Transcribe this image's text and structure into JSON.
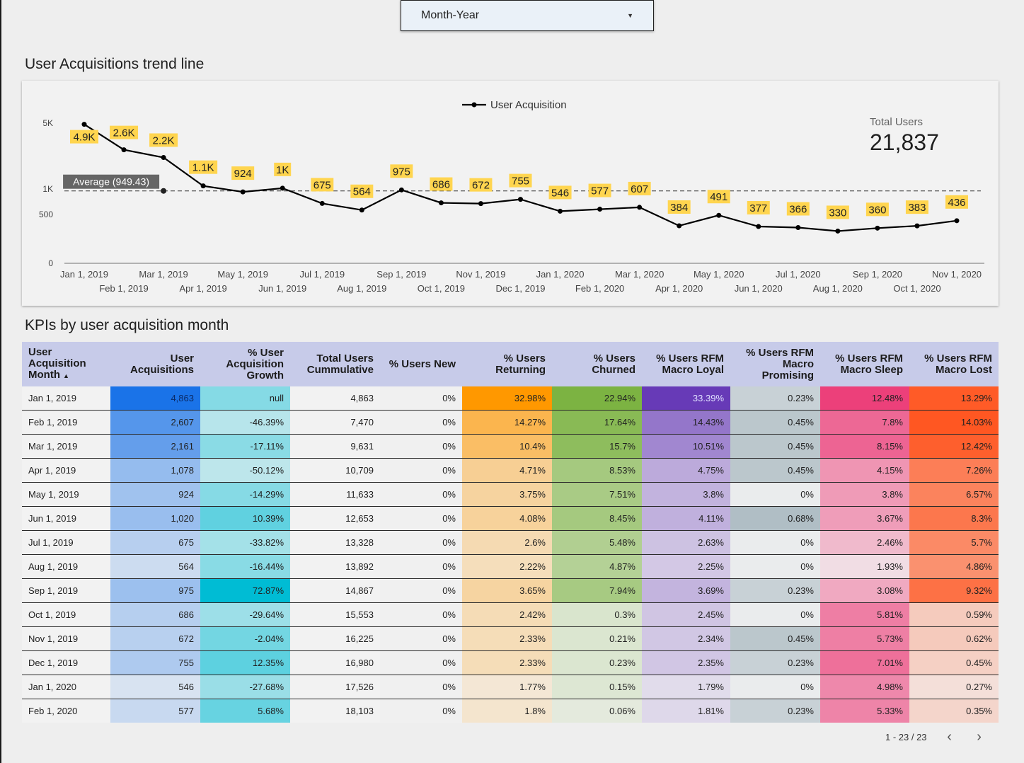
{
  "filter": {
    "label": "Month-Year"
  },
  "trend": {
    "title": "User Acquisitions trend line",
    "legend": "User Acquisition",
    "average_label": "Average (949.43)",
    "scorecard": {
      "label": "Total Users",
      "value": "21,837"
    }
  },
  "chart_data": {
    "type": "line",
    "title": "User Acquisitions trend line",
    "x": [
      "Jan 1, 2019",
      "Feb 1, 2019",
      "Mar 1, 2019",
      "Apr 1, 2019",
      "May 1, 2019",
      "Jun 1, 2019",
      "Jul 1, 2019",
      "Aug 1, 2019",
      "Sep 1, 2019",
      "Oct 1, 2019",
      "Nov 1, 2019",
      "Dec 1, 2019",
      "Jan 1, 2020",
      "Feb 1, 2020",
      "Mar 1, 2020",
      "Apr 1, 2020",
      "May 1, 2020",
      "Jun 1, 2020",
      "Jul 1, 2020",
      "Aug 1, 2020",
      "Sep 1, 2020",
      "Oct 1, 2020",
      "Nov 1, 2020"
    ],
    "series": [
      {
        "name": "User Acquisition",
        "values": [
          4863,
          2607,
          2161,
          1078,
          924,
          1020,
          675,
          564,
          975,
          686,
          672,
          755,
          546,
          577,
          607,
          384,
          491,
          377,
          366,
          330,
          360,
          383,
          436
        ],
        "labels": [
          "4.9K",
          "2.6K",
          "2.2K",
          "1.1K",
          "924",
          "1K",
          "675",
          "564",
          "975",
          "686",
          "672",
          "755",
          "546",
          "577",
          "607",
          "384",
          "491",
          "377",
          "366",
          "330",
          "360",
          "383",
          "436"
        ]
      }
    ],
    "y_ticks": [
      "0",
      "500",
      "1K",
      "5K"
    ],
    "average": 949.43,
    "scale": "log",
    "color": "#000000",
    "label_bg": "#ffd54f"
  },
  "kpi": {
    "title": "KPIs by user acquisition month",
    "columns": [
      "User Acquisition Month",
      "User Acquisitions",
      "% User Acquisition Growth",
      "Total Users Cummulative",
      "% Users New",
      "% Users Returning",
      "% Users Churned",
      "% Users RFM Macro Loyal",
      "% Users RFM Macro Promising",
      "% Users RFM Macro Sleep",
      "% Users RFM Macro Lost"
    ],
    "rows": [
      [
        "Jan 1, 2019",
        "4,863",
        "null",
        "4,863",
        "0%",
        "32.98%",
        "22.94%",
        "33.39%",
        "0.23%",
        "12.48%",
        "13.29%"
      ],
      [
        "Feb 1, 2019",
        "2,607",
        "-46.39%",
        "7,470",
        "0%",
        "14.27%",
        "17.64%",
        "14.43%",
        "0.45%",
        "7.8%",
        "14.03%"
      ],
      [
        "Mar 1, 2019",
        "2,161",
        "-17.11%",
        "9,631",
        "0%",
        "10.4%",
        "15.7%",
        "10.51%",
        "0.45%",
        "8.15%",
        "12.42%"
      ],
      [
        "Apr 1, 2019",
        "1,078",
        "-50.12%",
        "10,709",
        "0%",
        "4.71%",
        "8.53%",
        "4.75%",
        "0.45%",
        "4.15%",
        "7.26%"
      ],
      [
        "May 1, 2019",
        "924",
        "-14.29%",
        "11,633",
        "0%",
        "3.75%",
        "7.51%",
        "3.8%",
        "0%",
        "3.8%",
        "6.57%"
      ],
      [
        "Jun 1, 2019",
        "1,020",
        "10.39%",
        "12,653",
        "0%",
        "4.08%",
        "8.45%",
        "4.11%",
        "0.68%",
        "3.67%",
        "8.3%"
      ],
      [
        "Jul 1, 2019",
        "675",
        "-33.82%",
        "13,328",
        "0%",
        "2.6%",
        "5.48%",
        "2.63%",
        "0%",
        "2.46%",
        "5.7%"
      ],
      [
        "Aug 1, 2019",
        "564",
        "-16.44%",
        "13,892",
        "0%",
        "2.22%",
        "4.87%",
        "2.25%",
        "0%",
        "1.93%",
        "4.86%"
      ],
      [
        "Sep 1, 2019",
        "975",
        "72.87%",
        "14,867",
        "0%",
        "3.65%",
        "7.94%",
        "3.69%",
        "0.23%",
        "3.08%",
        "9.32%"
      ],
      [
        "Oct 1, 2019",
        "686",
        "-29.64%",
        "15,553",
        "0%",
        "2.42%",
        "0.3%",
        "2.45%",
        "0%",
        "5.81%",
        "0.59%"
      ],
      [
        "Nov 1, 2019",
        "672",
        "-2.04%",
        "16,225",
        "0%",
        "2.33%",
        "0.21%",
        "2.34%",
        "0.45%",
        "5.73%",
        "0.62%"
      ],
      [
        "Dec 1, 2019",
        "755",
        "12.35%",
        "16,980",
        "0%",
        "2.33%",
        "0.23%",
        "2.35%",
        "0.23%",
        "7.01%",
        "0.45%"
      ],
      [
        "Jan 1, 2020",
        "546",
        "-27.68%",
        "17,526",
        "0%",
        "1.77%",
        "0.15%",
        "1.79%",
        "0%",
        "4.98%",
        "0.27%"
      ],
      [
        "Feb 1, 2020",
        "577",
        "5.68%",
        "18,103",
        "0%",
        "1.8%",
        "0.06%",
        "1.81%",
        "0.23%",
        "5.33%",
        "0.35%"
      ]
    ],
    "column_colors": [
      "",
      "#1a73e8",
      "#00bcd4",
      "",
      "#bdbdbd",
      "#ff9800",
      "#7cb342",
      "#673ab7",
      "#b0bec5",
      "#ec407a",
      "#ff5722"
    ],
    "pagination": "1 - 23 / 23"
  }
}
